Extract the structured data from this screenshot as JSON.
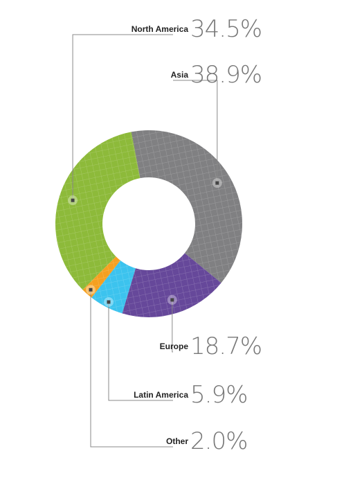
{
  "chart_data": {
    "type": "donut",
    "categories": [
      "North America",
      "Asia",
      "Europe",
      "Latin America",
      "Other"
    ],
    "values": [
      34.5,
      38.9,
      18.7,
      5.9,
      2.0
    ],
    "value_labels": [
      "34.5%",
      "38.9%",
      "18.7%",
      "5.9%",
      "2.0%"
    ],
    "colors": [
      "#8dba3a",
      "#808082",
      "#66489a",
      "#3cc3ee",
      "#f5a020"
    ]
  }
}
